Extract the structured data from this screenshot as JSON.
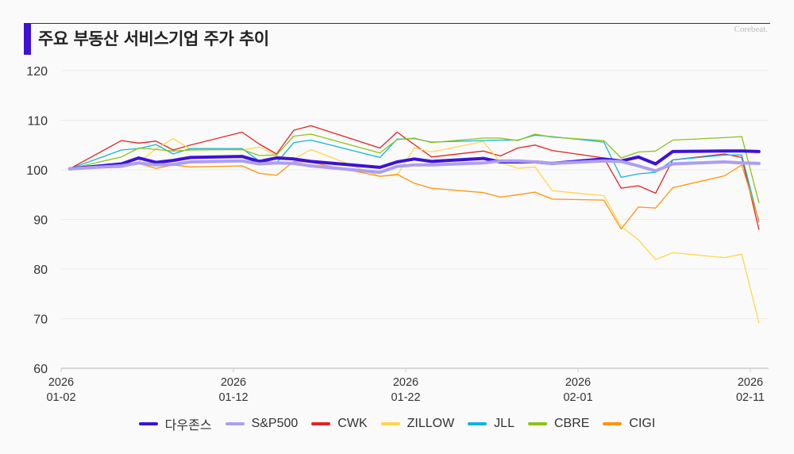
{
  "header": {
    "title": "주요 부동산 서비스기업 주가 추이",
    "brand": "Corebeat."
  },
  "chart_data": {
    "type": "line",
    "title": "주요 부동산 서비스기업 주가 추이",
    "xlabel": "",
    "ylabel": "",
    "ylim": [
      60,
      120
    ],
    "yticks": [
      60,
      70,
      80,
      90,
      100,
      110,
      120
    ],
    "grid": true,
    "legend_position": "bottom",
    "xticks": [
      {
        "day": 0,
        "year": "2026",
        "date": "01-02"
      },
      {
        "day": 10,
        "year": "2026",
        "date": "01-12"
      },
      {
        "day": 20,
        "year": "2026",
        "date": "01-22"
      },
      {
        "day": 30,
        "year": "2026",
        "date": "02-01"
      },
      {
        "day": 40,
        "year": "2026",
        "date": "02-11"
      }
    ],
    "x": [
      0.5,
      3.5,
      4.5,
      5.5,
      6.5,
      7.5,
      10.5,
      11.5,
      12.5,
      13.5,
      14.5,
      18.5,
      19.5,
      20.5,
      21.5,
      24.5,
      25.5,
      26.5,
      27.5,
      28.5,
      31.5,
      32.5,
      33.5,
      34.5,
      35.5,
      38.5,
      39.5,
      40.5
    ],
    "series": [
      {
        "name": "다우존스",
        "color": "#3d12d6",
        "width": 4,
        "values": [
          100.2,
          101.2,
          102.4,
          101.5,
          101.9,
          102.5,
          102.7,
          101.7,
          102.4,
          102.2,
          101.7,
          100.5,
          101.6,
          102.2,
          101.7,
          102.3,
          101.6,
          101.6,
          101.6,
          101.3,
          102.2,
          101.8,
          102.6,
          101.2,
          103.7,
          103.8,
          103.8,
          103.7
        ]
      },
      {
        "name": "S&P500",
        "color": "#ad9ef0",
        "width": 4,
        "values": [
          100.2,
          100.8,
          101.4,
          101.0,
          101.1,
          101.6,
          101.8,
          101.2,
          101.4,
          101.3,
          100.8,
          99.5,
          100.7,
          101.0,
          101.0,
          101.4,
          101.8,
          101.8,
          101.6,
          101.3,
          101.8,
          101.7,
          100.8,
          99.8,
          101.2,
          101.6,
          101.4,
          101.3
        ]
      },
      {
        "name": "CWK",
        "color": "#e02424",
        "width": 1.3,
        "values": [
          100.2,
          105.9,
          105.4,
          105.8,
          104.0,
          105.0,
          107.6,
          105.2,
          103.2,
          108.0,
          108.9,
          104.4,
          107.6,
          105.1,
          102.6,
          103.8,
          102.8,
          104.4,
          105.0,
          103.9,
          102.4,
          96.3,
          96.8,
          95.3,
          102.0,
          103.2,
          102.5,
          88.0
        ]
      },
      {
        "name": "ZILLOW",
        "color": "#ffd64a",
        "width": 1.3,
        "values": [
          100.2,
          100.5,
          101.6,
          104.2,
          106.3,
          104.2,
          104.0,
          104.6,
          102.9,
          102.2,
          104.1,
          98.7,
          98.9,
          104.4,
          103.6,
          105.7,
          101.5,
          100.3,
          100.6,
          95.8,
          94.8,
          88.6,
          85.9,
          81.9,
          83.3,
          82.3,
          83.0,
          69.2
        ]
      },
      {
        "name": "JLL",
        "color": "#12b4dc",
        "width": 1.3,
        "values": [
          100.2,
          104.0,
          104.3,
          105.1,
          103.2,
          104.3,
          104.3,
          101.8,
          101.4,
          105.5,
          106.0,
          102.5,
          106.2,
          106.3,
          105.6,
          105.9,
          106.0,
          106.0,
          107.0,
          106.7,
          105.6,
          98.5,
          99.2,
          99.5,
          102.0,
          103.0,
          103.0,
          89.5
        ]
      },
      {
        "name": "CBRE",
        "color": "#8bc41a",
        "width": 1.3,
        "values": [
          100.2,
          102.6,
          104.4,
          104.1,
          103.8,
          104.0,
          104.1,
          102.9,
          103.0,
          106.8,
          107.2,
          103.4,
          106.1,
          106.4,
          105.5,
          106.4,
          106.4,
          105.9,
          107.2,
          106.6,
          105.9,
          102.4,
          103.6,
          103.8,
          106.0,
          106.5,
          106.7,
          93.4
        ]
      },
      {
        "name": "CIGI",
        "color": "#ff9408",
        "width": 1.3,
        "values": [
          100.2,
          100.5,
          101.3,
          100.3,
          101.0,
          100.6,
          100.8,
          99.3,
          98.9,
          101.7,
          101.5,
          98.7,
          99.1,
          97.3,
          96.3,
          95.4,
          94.5,
          95.0,
          95.5,
          94.1,
          93.9,
          88.1,
          92.5,
          92.3,
          96.4,
          98.8,
          101.0,
          89.8
        ]
      }
    ]
  }
}
